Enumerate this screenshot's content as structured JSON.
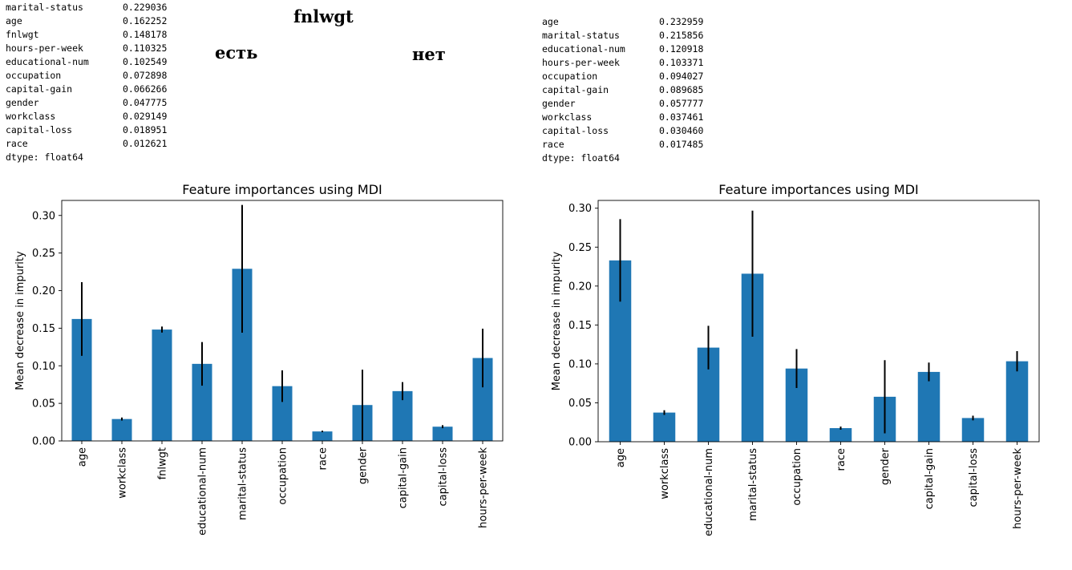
{
  "headings": {
    "main": "fnlwgt",
    "yes": "есть",
    "no": "нет"
  },
  "left_series": {
    "rows": [
      {
        "name": "marital-status",
        "value": "0.229036"
      },
      {
        "name": "age",
        "value": "0.162252"
      },
      {
        "name": "fnlwgt",
        "value": "0.148178"
      },
      {
        "name": "hours-per-week",
        "value": "0.110325"
      },
      {
        "name": "educational-num",
        "value": "0.102549"
      },
      {
        "name": "occupation",
        "value": "0.072898"
      },
      {
        "name": "capital-gain",
        "value": "0.066266"
      },
      {
        "name": "gender",
        "value": "0.047775"
      },
      {
        "name": "workclass",
        "value": "0.029149"
      },
      {
        "name": "capital-loss",
        "value": "0.018951"
      },
      {
        "name": "race",
        "value": "0.012621"
      }
    ],
    "dtype": "dtype: float64"
  },
  "right_series": {
    "rows": [
      {
        "name": "age",
        "value": "0.232959"
      },
      {
        "name": "marital-status",
        "value": "0.215856"
      },
      {
        "name": "educational-num",
        "value": "0.120918"
      },
      {
        "name": "hours-per-week",
        "value": "0.103371"
      },
      {
        "name": "occupation",
        "value": "0.094027"
      },
      {
        "name": "capital-gain",
        "value": "0.089685"
      },
      {
        "name": "gender",
        "value": "0.057777"
      },
      {
        "name": "workclass",
        "value": "0.037461"
      },
      {
        "name": "capital-loss",
        "value": "0.030460"
      },
      {
        "name": "race",
        "value": "0.017485"
      }
    ],
    "dtype": "dtype: float64"
  },
  "colors": {
    "bar": "#1f77b4",
    "error_bar": "#000000"
  },
  "chart_data": [
    {
      "type": "bar",
      "title": "Feature importances using MDI",
      "xlabel": "",
      "ylabel": "Mean decrease in impurity",
      "ylim": [
        0,
        0.32
      ],
      "yticks": [
        0.0,
        0.05,
        0.1,
        0.15,
        0.2,
        0.25,
        0.3
      ],
      "ytick_labels": [
        "0.00",
        "0.05",
        "0.10",
        "0.15",
        "0.20",
        "0.25",
        "0.30"
      ],
      "grid": false,
      "categories": [
        "age",
        "workclass",
        "fnlwgt",
        "educational-num",
        "marital-status",
        "occupation",
        "race",
        "gender",
        "capital-gain",
        "capital-loss",
        "hours-per-week"
      ],
      "values": [
        0.162252,
        0.029149,
        0.148178,
        0.102549,
        0.229036,
        0.072898,
        0.012621,
        0.047775,
        0.066266,
        0.018951,
        0.110325
      ],
      "errors": [
        0.049,
        0.002,
        0.004,
        0.029,
        0.085,
        0.021,
        0.001,
        0.047,
        0.012,
        0.002,
        0.039
      ]
    },
    {
      "type": "bar",
      "title": "Feature importances using MDI",
      "xlabel": "",
      "ylabel": "Mean decrease in impurity",
      "ylim": [
        0,
        0.31
      ],
      "yticks": [
        0.0,
        0.05,
        0.1,
        0.15,
        0.2,
        0.25,
        0.3
      ],
      "ytick_labels": [
        "0.00",
        "0.05",
        "0.10",
        "0.15",
        "0.20",
        "0.25",
        "0.30"
      ],
      "grid": false,
      "categories": [
        "age",
        "workclass",
        "educational-num",
        "marital-status",
        "occupation",
        "race",
        "gender",
        "capital-gain",
        "capital-loss",
        "hours-per-week"
      ],
      "values": [
        0.232959,
        0.037461,
        0.120918,
        0.215856,
        0.094027,
        0.017485,
        0.057777,
        0.089685,
        0.03046,
        0.103371
      ],
      "errors": [
        0.053,
        0.003,
        0.028,
        0.081,
        0.025,
        0.002,
        0.047,
        0.012,
        0.003,
        0.013
      ]
    }
  ]
}
